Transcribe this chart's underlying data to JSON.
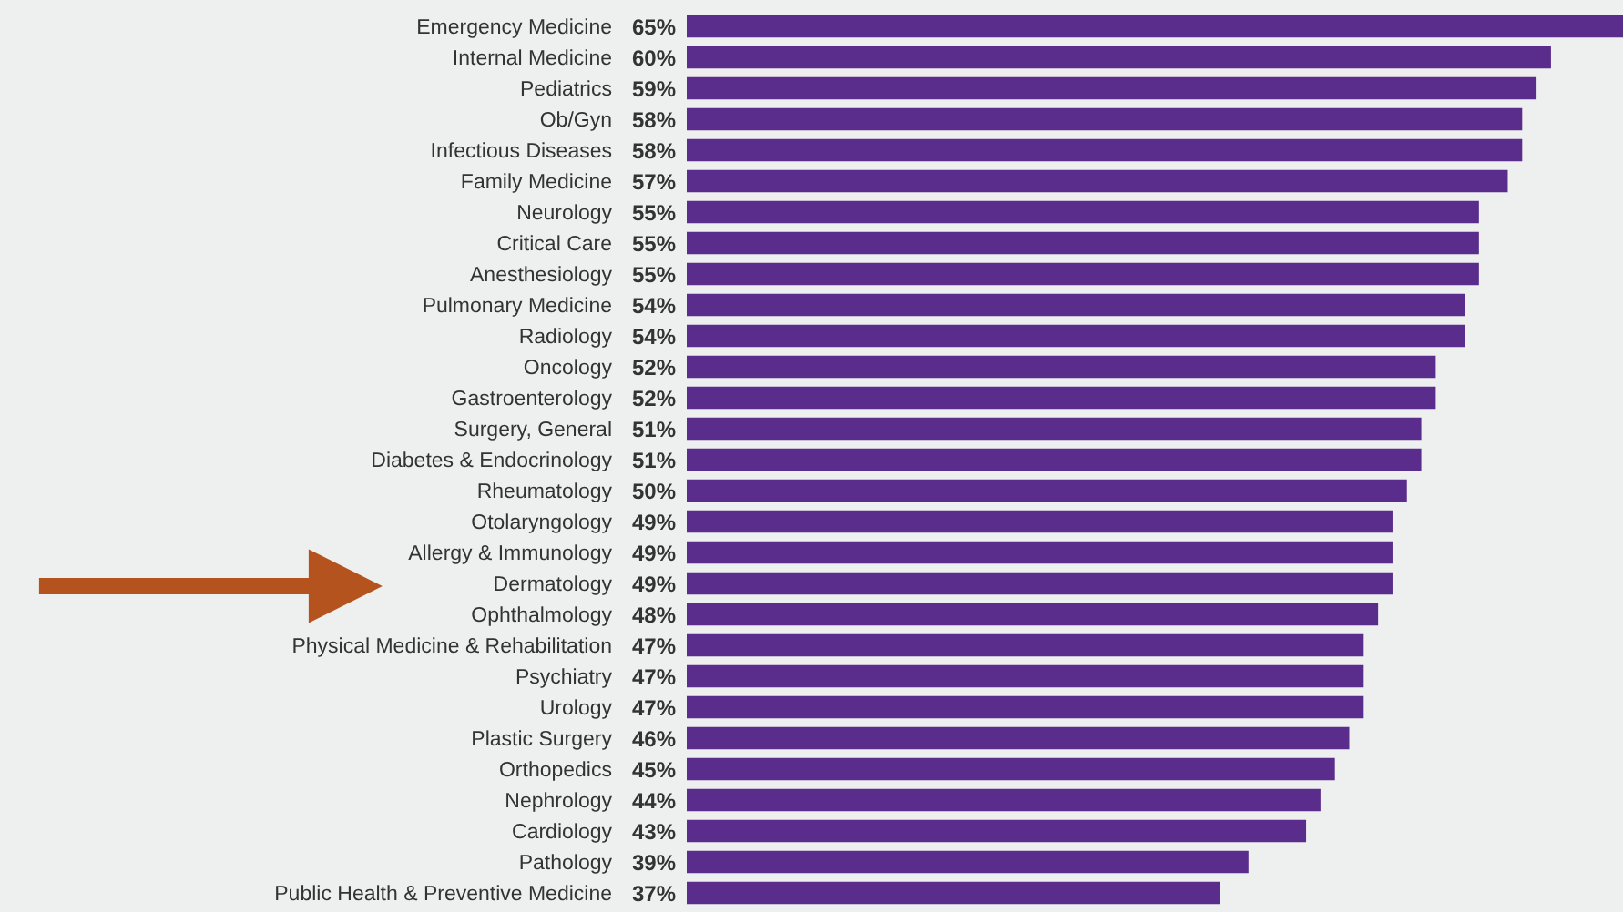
{
  "chart_data": {
    "type": "bar",
    "orientation": "horizontal",
    "categories": [
      "Emergency Medicine",
      "Internal Medicine",
      "Pediatrics",
      "Ob/Gyn",
      "Infectious Diseases",
      "Family Medicine",
      "Neurology",
      "Critical Care",
      "Anesthesiology",
      "Pulmonary Medicine",
      "Radiology",
      "Oncology",
      "Gastroenterology",
      "Surgery, General",
      "Diabetes & Endocrinology",
      "Rheumatology",
      "Otolaryngology",
      "Allergy & Immunology",
      "Dermatology",
      "Ophthalmology",
      "Physical Medicine & Rehabilitation",
      "Psychiatry",
      "Urology",
      "Plastic Surgery",
      "Orthopedics",
      "Nephrology",
      "Cardiology",
      "Pathology",
      "Public Health & Preventive Medicine"
    ],
    "values": [
      65,
      60,
      59,
      58,
      58,
      57,
      55,
      55,
      55,
      54,
      54,
      52,
      52,
      51,
      51,
      50,
      49,
      49,
      49,
      48,
      47,
      47,
      47,
      46,
      45,
      44,
      43,
      39,
      37
    ],
    "value_labels": [
      "65%",
      "60%",
      "59%",
      "58%",
      "58%",
      "57%",
      "55%",
      "55%",
      "55%",
      "54%",
      "54%",
      "52%",
      "52%",
      "51%",
      "51%",
      "50%",
      "49%",
      "49%",
      "49%",
      "48%",
      "47%",
      "47%",
      "47%",
      "46%",
      "45%",
      "44%",
      "43%",
      "39%",
      "37%"
    ],
    "color": "#5a2d8c",
    "grid": false,
    "legend": false
  }
}
